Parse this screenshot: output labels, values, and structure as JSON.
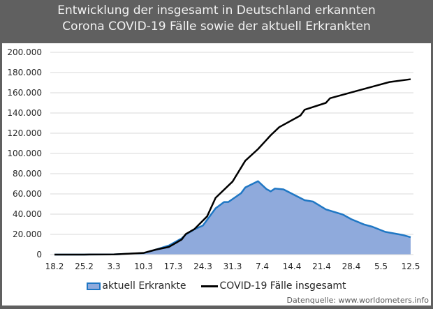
{
  "title_line1": "Entwicklung der insgesamt in Deutschland erkannten",
  "title_line2": "Corona COVID-19 Fälle sowie der aktuell Erkrankten",
  "source": "Datenquelle: www.worldometers.info",
  "chart_data": {
    "type": "line",
    "title": "Entwicklung der insgesamt in Deutschland erkannten Corona COVID-19 Fälle sowie der aktuell Erkrankten",
    "xlabel": "",
    "ylabel": "",
    "x_unit": "days since 18.2",
    "xlim": [
      0,
      84
    ],
    "ylim": [
      0,
      200000
    ],
    "grid": true,
    "legend_position": "bottom",
    "x_tick_labels": [
      "18.2",
      "25.2",
      "3.3",
      "10.3",
      "17.3",
      "24.3",
      "31.3",
      "7.4",
      "14.4",
      "21.4",
      "28.4",
      "5.5",
      "12.5"
    ],
    "y_tick_labels": [
      "0",
      "20.000",
      "40.000",
      "60.000",
      "80.000",
      "100.000",
      "120.000",
      "140.000",
      "160.000",
      "180.000",
      "200.000"
    ],
    "series": [
      {
        "name": "aktuell Erkrankte",
        "kind": "area",
        "color": "#1f77c4",
        "fill": "#8faadc",
        "x": [
          0,
          7,
          14,
          21,
          24,
          27,
          30,
          31,
          33,
          35,
          38,
          40,
          41,
          44,
          45,
          48,
          50,
          51,
          52,
          54,
          59,
          61,
          64,
          68,
          70,
          73,
          75,
          78,
          82,
          84
        ],
        "y": [
          16,
          16,
          200,
          1500,
          5000,
          9000,
          16000,
          20000,
          25000,
          28700,
          45800,
          52000,
          52000,
          60700,
          66400,
          72600,
          64800,
          62500,
          65300,
          64500,
          53800,
          52400,
          44700,
          39600,
          35000,
          29800,
          27500,
          22500,
          19500,
          17200
        ]
      },
      {
        "name": "COVID-19 Fälle insgesamt",
        "kind": "line",
        "color": "#000000",
        "x": [
          0,
          7,
          14,
          21,
          24,
          27,
          30,
          31,
          33,
          36,
          38,
          42,
          45,
          48,
          51,
          53,
          58,
          59,
          64,
          65,
          71,
          76,
          79,
          84
        ],
        "y": [
          16,
          16,
          200,
          1600,
          5000,
          7600,
          14900,
          20400,
          25200,
          37800,
          56100,
          72200,
          92800,
          104300,
          118000,
          126000,
          137500,
          143200,
          150000,
          154600,
          161500,
          167200,
          170600,
          173400
        ]
      }
    ]
  }
}
